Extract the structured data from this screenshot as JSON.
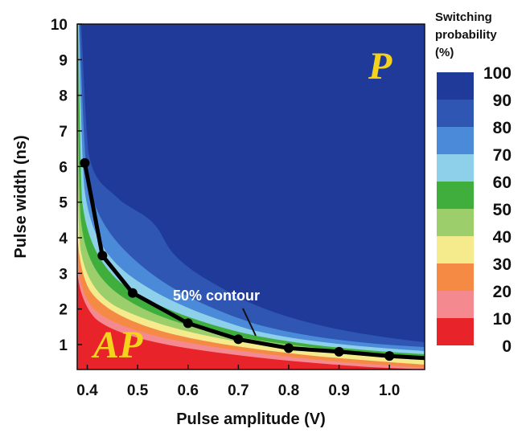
{
  "chart_data": {
    "type": "heatmap",
    "title": "",
    "xlabel": "Pulse amplitude (V)",
    "ylabel": "Pulse width (ns)",
    "xlim": [
      0.38,
      1.07
    ],
    "ylim": [
      0.3,
      10
    ],
    "x_ticks": [
      "0.4",
      "0.5",
      "0.6",
      "0.7",
      "0.8",
      "0.9",
      "1.0"
    ],
    "x_tick_values": [
      0.4,
      0.5,
      0.6,
      0.7,
      0.8,
      0.9,
      1.0
    ],
    "y_ticks": [
      "1",
      "2",
      "3",
      "4",
      "5",
      "6",
      "7",
      "8",
      "9",
      "10"
    ],
    "y_tick_values": [
      1,
      2,
      3,
      4,
      5,
      6,
      7,
      8,
      9,
      10
    ],
    "colorbar": {
      "title_lines": [
        "Switching",
        "probability",
        "(%)"
      ],
      "levels": [
        "100",
        "90",
        "80",
        "70",
        "60",
        "50",
        "40",
        "30",
        "20",
        "10",
        "0"
      ],
      "colors": [
        "#1f3a99",
        "#2e56b2",
        "#4a8ad8",
        "#8ed0ea",
        "#3fae3c",
        "#9ccf6c",
        "#f5eb8c",
        "#f58a44",
        "#f48a90",
        "#e8242a"
      ]
    },
    "series": [
      {
        "name": "50% contour",
        "x": [
          0.395,
          0.43,
          0.49,
          0.6,
          0.7,
          0.8,
          0.9,
          1.0,
          1.07
        ],
        "y": [
          6.1,
          3.5,
          2.45,
          1.6,
          1.15,
          0.9,
          0.8,
          0.68,
          0.62
        ]
      }
    ],
    "region_labels": {
      "top_right": "P",
      "bottom_left": "AP"
    }
  }
}
